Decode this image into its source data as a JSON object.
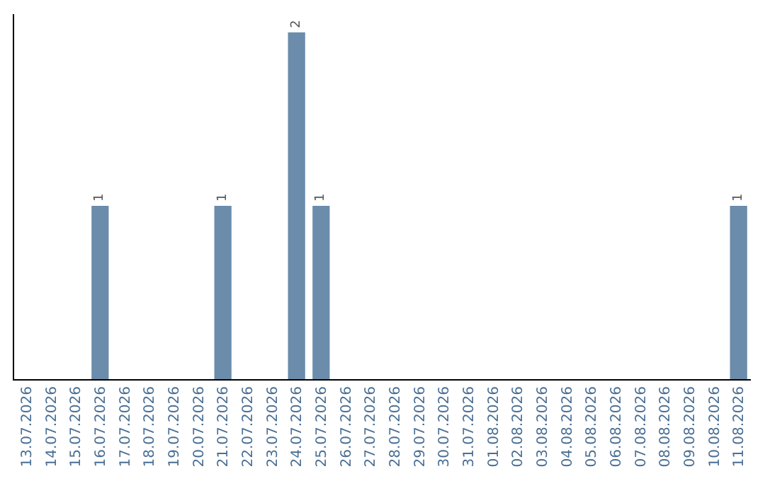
{
  "chart_data": {
    "type": "bar",
    "categories": [
      "13.07.2026",
      "14.07.2026",
      "15.07.2026",
      "16.07.2026",
      "17.07.2026",
      "18.07.2026",
      "19.07.2026",
      "20.07.2026",
      "21.07.2026",
      "22.07.2026",
      "23.07.2026",
      "24.07.2026",
      "25.07.2026",
      "26.07.2026",
      "27.07.2026",
      "28.07.2026",
      "29.07.2026",
      "30.07.2026",
      "31.07.2026",
      "01.08.2026",
      "02.08.2026",
      "03.08.2026",
      "04.08.2026",
      "05.08.2026",
      "06.08.2026",
      "07.08.2026",
      "08.08.2026",
      "09.08.2026",
      "10.08.2026",
      "11.08.2026"
    ],
    "values": [
      0,
      0,
      0,
      1,
      0,
      0,
      0,
      0,
      1,
      0,
      0,
      2,
      1,
      0,
      0,
      0,
      0,
      0,
      0,
      0,
      0,
      0,
      0,
      0,
      0,
      0,
      0,
      0,
      0,
      1
    ],
    "color": "#6b8cab",
    "tick_labels": "x",
    "value_labels": [
      null,
      null,
      null,
      "1",
      null,
      null,
      null,
      null,
      "1",
      null,
      null,
      "2",
      "1",
      null,
      null,
      null,
      null,
      null,
      null,
      null,
      null,
      null,
      null,
      null,
      null,
      null,
      null,
      null,
      null,
      "1"
    ],
    "legend": false
  }
}
